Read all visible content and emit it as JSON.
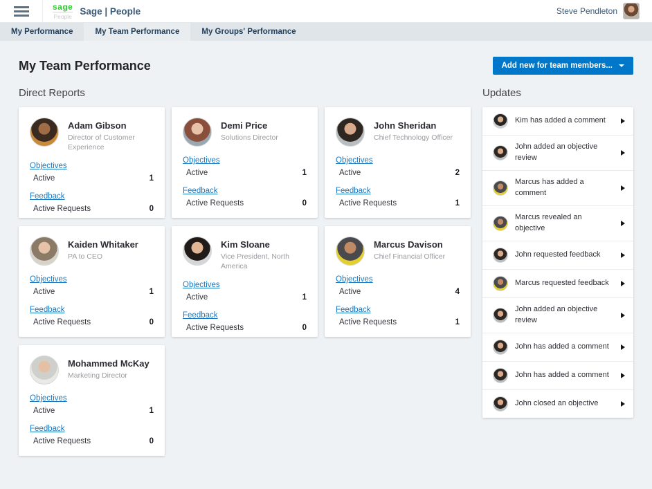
{
  "header": {
    "logo_brand": "sage",
    "logo_sub": "People",
    "app_title": "Sage | People",
    "user_name": "Steve Pendleton",
    "user_avatar_colors": [
      "#b9b4ac",
      "#6b4a33",
      "#d8a886"
    ]
  },
  "tabs": [
    {
      "label": "My Performance",
      "active": false
    },
    {
      "label": "My Team Performance",
      "active": true
    },
    {
      "label": "My Groups' Performance",
      "active": false
    }
  ],
  "page": {
    "title": "My Team Performance",
    "add_button_label": "Add new for team members..."
  },
  "direct_reports": {
    "heading": "Direct Reports",
    "labels": {
      "objectives": "Objectives",
      "active": "Active",
      "feedback": "Feedback",
      "active_requests": "Active Requests"
    },
    "people": [
      {
        "name": "Adam Gibson",
        "title": "Director of Customer Experience",
        "active": "1",
        "active_requests": "0",
        "avatar_colors": [
          "#c8893a",
          "#3a2a20",
          "#a06c47"
        ]
      },
      {
        "name": "Demi Price",
        "title": "Solutions Director",
        "active": "1",
        "active_requests": "0",
        "avatar_colors": [
          "#9aa7b0",
          "#8a4f3a",
          "#e8c2a8"
        ]
      },
      {
        "name": "John Sheridan",
        "title": "Chief Technology Officer",
        "active": "2",
        "active_requests": "1",
        "avatar_colors": [
          "#b8bdc0",
          "#2e2620",
          "#d9a98c"
        ]
      },
      {
        "name": "Kaiden Whitaker",
        "title": "PA to CEO",
        "active": "1",
        "active_requests": "0",
        "avatar_colors": [
          "#d8d3c8",
          "#8a7a66",
          "#e6c3a8"
        ]
      },
      {
        "name": "Kim Sloane",
        "title": "Vice President, North America",
        "active": "1",
        "active_requests": "0",
        "avatar_colors": [
          "#d4d6d8",
          "#201a18",
          "#e2b694"
        ]
      },
      {
        "name": "Marcus Davison",
        "title": "Chief Financial Officer",
        "active": "4",
        "active_requests": "1",
        "avatar_colors": [
          "#e3cf2e",
          "#4a4a4e",
          "#bf8a64"
        ]
      },
      {
        "name": "Mohammed McKay",
        "title": "Marketing Director",
        "active": "1",
        "active_requests": "0",
        "avatar_colors": [
          "#e9e9e7",
          "#cfcfcb",
          "#e4c0a4"
        ]
      }
    ]
  },
  "updates": {
    "heading": "Updates",
    "items": [
      {
        "text": "Kim has added a comment",
        "person": "Kim"
      },
      {
        "text": "John added an objective review",
        "person": "John"
      },
      {
        "text": "Marcus has added a comment",
        "person": "Marcus"
      },
      {
        "text": "Marcus revealed an objective",
        "person": "Marcus"
      },
      {
        "text": "John requested feedback",
        "person": "John"
      },
      {
        "text": "Marcus requested feedback",
        "person": "Marcus"
      },
      {
        "text": "John added an objective review",
        "person": "John"
      },
      {
        "text": "John has added a comment",
        "person": "John"
      },
      {
        "text": "John has added a comment",
        "person": "John"
      },
      {
        "text": "John closed an objective",
        "person": "John"
      }
    ],
    "avatars": {
      "Kim": [
        "#cfcfcf",
        "#262626",
        "#d9b08e"
      ],
      "John": [
        "#b8bdc0",
        "#2e2620",
        "#d9a98c"
      ],
      "Marcus": [
        "#e3cf2e",
        "#4a4a4e",
        "#bf8a64"
      ]
    }
  },
  "colors": {
    "accent_blue": "#0077c8",
    "link_blue": "#1878c2",
    "brand_green": "#2fc82f",
    "navy_text": "#3c5a76",
    "tabbar_bg": "#dfe5e9",
    "active_tab_bg": "#e9edef",
    "page_bg": "#eff2f4"
  }
}
